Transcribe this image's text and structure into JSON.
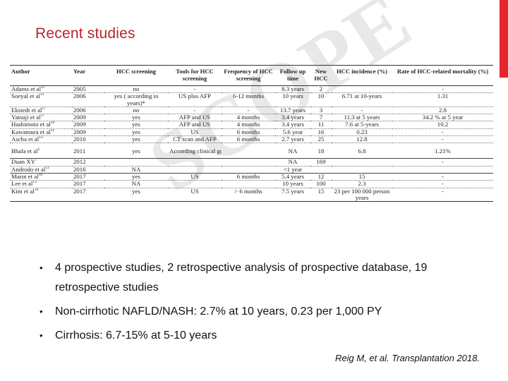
{
  "slide": {
    "title": "Recent studies",
    "watermark": "SCOPE",
    "reference": "Reig M, et al. Transplantation 2018.",
    "accent_color": "#e3262d",
    "title_color": "#b3272d"
  },
  "table": {
    "headers": {
      "author": "Author",
      "year": "Year",
      "screening": "HCC screening",
      "tools": "Tools for HCC screening",
      "frequency": "Frequency of HCC screening",
      "followup": "Follow up time",
      "newhcc": "New HCC",
      "incidence": "HCC incidence (%)",
      "mortality": "Rate of HCC-related mortality (%)"
    },
    "rows": [
      {
        "author": "Adams et al",
        "ref": "11",
        "year": "2005",
        "screening": "no",
        "tools": "-",
        "frequency": "",
        "followup": "8.3 years",
        "newhcc": "2",
        "incidence": "",
        "mortality": "-"
      },
      {
        "author": "Soeyal et al",
        "ref": "11",
        "year": "2006",
        "screening": "yes ( according to years)*",
        "tools": "US plus AFP",
        "frequency": "6-12 months",
        "followup": "10 years",
        "newhcc": "10",
        "incidence": "6.71 at 10-years",
        "mortality": "1.31"
      },
      {
        "author": "Ekstedt et al",
        "ref": "17",
        "year": "2006",
        "screening": "no",
        "tools": "-",
        "frequency": "-",
        "followup": "13.7 years",
        "newhcc": "3",
        "incidence": "-",
        "mortality": "2.8"
      },
      {
        "author": "Yatsuji et al",
        "ref": "17",
        "year": "2009",
        "screening": "yes",
        "tools": "AFP and US",
        "frequency": "4 months",
        "followup": "3.4 years",
        "newhcc": "7",
        "incidence": "11.3 at 5 years",
        "mortality": "34.2 % at 5 year"
      },
      {
        "author": "Hashimoto et al",
        "ref": "19",
        "year": "2009",
        "screening": "yes",
        "tools": "AFP and US",
        "frequency": "4 months",
        "followup": "3.4 years",
        "newhcc": "11",
        "incidence": "7.6 at 5-years",
        "mortality": "10.2"
      },
      {
        "author": "Kawamura et al",
        "ref": "11",
        "year": "2009",
        "screening": "yes",
        "tools": "US",
        "frequency": "6 months",
        "followup": "5.6 year",
        "newhcc": "16",
        "incidence": "0.23",
        "mortality": "-"
      },
      {
        "author": "Ascha et al",
        "ref": "13",
        "year": "2010",
        "screening": "yes",
        "tools": "CT scan and AFP",
        "frequency": "6 months",
        "followup": "2.7 years",
        "newhcc": "25",
        "incidence": "12.8",
        "mortality": "-"
      },
      {
        "author": "Bhala et al",
        "ref": "5",
        "year": "2011",
        "screening": "yes",
        "tools": "According clinical guidelines*",
        "frequency": "",
        "followup": "NA",
        "newhcc": "18",
        "incidence": "6.8",
        "mortality": "1.21%"
      },
      {
        "author": "Duan XY",
        "ref": "7",
        "year": "2012",
        "screening": "",
        "tools": "",
        "frequency": "",
        "followup": "NA",
        "newhcc": "169",
        "incidence": "",
        "mortality": "-"
      },
      {
        "author": "Androdo et al",
        "ref": "11",
        "year": "2016",
        "screening": "NA",
        "tools": "",
        "frequency": "",
        "followup": "<1 year",
        "newhcc": "",
        "incidence": "",
        "mortality": ""
      },
      {
        "author": "Marot et al",
        "ref": "18",
        "year": "2017",
        "screening": "yes",
        "tools": "US",
        "frequency": "6 months",
        "followup": "5.4 years",
        "newhcc": "12",
        "incidence": "15",
        "mortality": "-"
      },
      {
        "author": "Lee et al",
        "ref": "13",
        "year": "2017",
        "screening": "NA",
        "tools": "",
        "frequency": "",
        "followup": "10 years",
        "newhcc": "100",
        "incidence": "2.3",
        "mortality": "-"
      },
      {
        "author": "Kim et al",
        "ref": "14",
        "year": "2017",
        "screening": "yes",
        "tools": "US",
        "frequency": "> 6 months",
        "followup": "7.5 years",
        "newhcc": "15",
        "incidence": "23 per 100 000 person years",
        "mortality": "-"
      }
    ]
  },
  "bullets": [
    "4 prospective studies, 2 retrospective analysis of prospective database, 19 retrospective studies",
    "Non-cirrhotic NAFLD/NASH: 2.7% at 10 years, 0.23 per 1,000 PY",
    "Cirrhosis: 6.7-15% at 5-10 years"
  ],
  "bullet_glyph": "•"
}
